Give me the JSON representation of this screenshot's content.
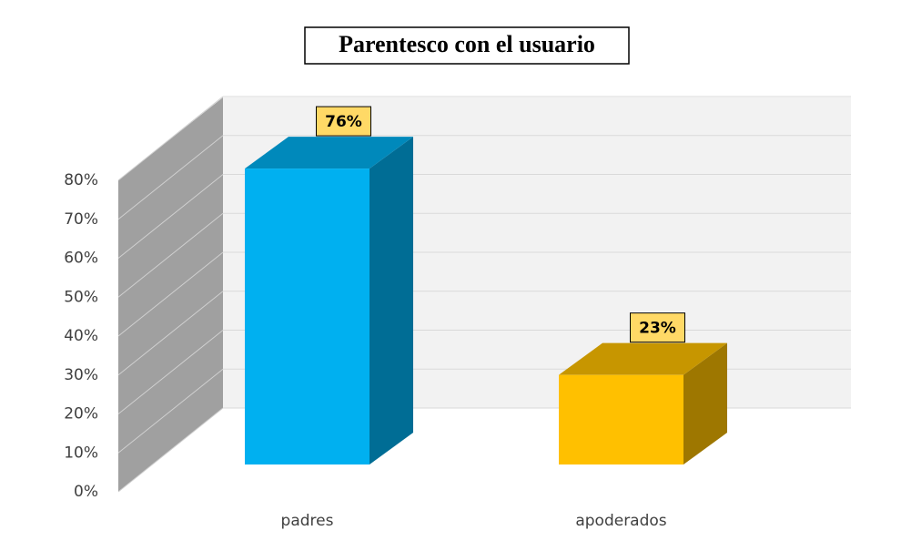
{
  "chart_data": {
    "type": "bar3d",
    "title": "Parentesco con el usuario",
    "categories": [
      "padres",
      "apoderados"
    ],
    "series": [
      {
        "name": null,
        "colors": [
          "#00b0f0",
          "#ffc000"
        ],
        "values": [
          76,
          23
        ],
        "value_labels": [
          "76%",
          "23%"
        ]
      }
    ],
    "ylim": [
      0,
      80
    ],
    "yticks": [
      {
        "value": 0,
        "label": "0%"
      },
      {
        "value": 10,
        "label": "10%"
      },
      {
        "value": 20,
        "label": "20%"
      },
      {
        "value": 30,
        "label": "30%"
      },
      {
        "value": 40,
        "label": "40%"
      },
      {
        "value": 50,
        "label": "50%"
      },
      {
        "value": 60,
        "label": "60%"
      },
      {
        "value": 70,
        "label": "70%"
      },
      {
        "value": 80,
        "label": "80%"
      }
    ],
    "grid": true
  }
}
